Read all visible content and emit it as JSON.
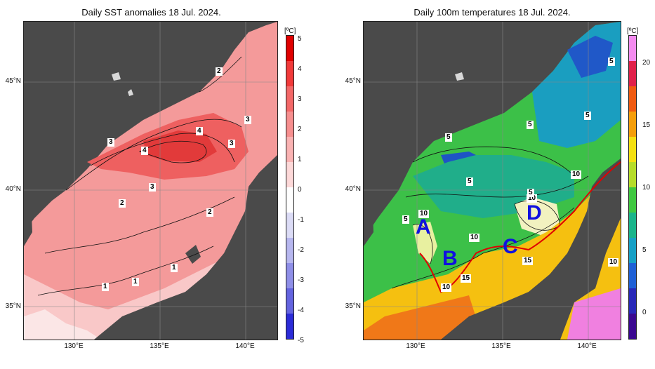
{
  "left_panel": {
    "title": "Daily SST anomalies 18 Jul. 2024.",
    "colorbar": {
      "unit": "[ºC]",
      "ticks": [
        "5",
        "4",
        "3",
        "2",
        "1",
        "0",
        "-1",
        "-2",
        "-3",
        "-4",
        "-5"
      ],
      "colors": [
        "#e00000",
        "#f23a3a",
        "#f46868",
        "#f78f8f",
        "#fab3b3",
        "#fdd9d9",
        "#ffffff",
        "#dcdcf6",
        "#b7b7ef",
        "#8f8fe8",
        "#6464e0",
        "#2c2cd8"
      ]
    },
    "contour_labels": [
      "2",
      "3",
      "3",
      "4",
      "4",
      "3",
      "3",
      "2",
      "2",
      "1",
      "1",
      "1"
    ]
  },
  "right_panel": {
    "title": "Daily 100m temperatures 18 Jul. 2024.",
    "colorbar": {
      "unit": "[ºC]",
      "ticks": [
        "20",
        "15",
        "10",
        "5",
        "0"
      ],
      "colors": [
        "#f48cf0",
        "#e0204a",
        "#f05a10",
        "#f59e0a",
        "#f5e012",
        "#b6dc2a",
        "#3fc840",
        "#19b48a",
        "#16a0c6",
        "#1e60d6",
        "#2828b8",
        "#3a0890"
      ]
    },
    "contour_labels": [
      "5",
      "5",
      "5",
      "5",
      "5",
      "10",
      "10",
      "5",
      "10",
      "10",
      "10",
      "15",
      "15",
      "10",
      "5"
    ],
    "zone_labels": [
      "A",
      "B",
      "C",
      "D"
    ]
  },
  "axes": {
    "lat_labels": [
      "45°N",
      "40°N",
      "35°N"
    ],
    "lon_labels": [
      "130°E",
      "135°E",
      "140°E"
    ]
  }
}
